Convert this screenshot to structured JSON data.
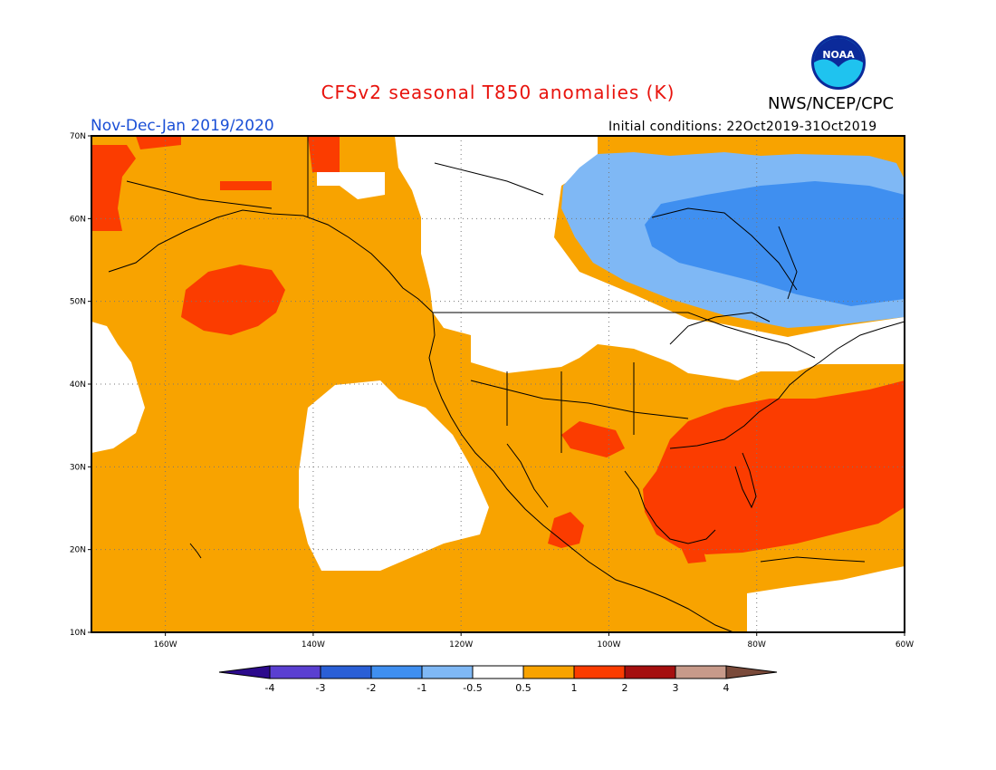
{
  "header": {
    "title": "CFSv2 seasonal T850 anomalies (K)",
    "org": "NWS/NCEP/CPC",
    "period": "Nov-Dec-Jan 2019/2020",
    "initial_conditions": "Initial conditions: 22Oct2019-31Oct2019",
    "logo_text": "NOAA"
  },
  "map": {
    "lat_ticks": [
      "70N",
      "60N",
      "50N",
      "40N",
      "30N",
      "20N",
      "10N"
    ],
    "lon_ticks": [
      "160W",
      "140W",
      "120W",
      "100W",
      "80W",
      "60W"
    ],
    "lon_range": [
      -170,
      -60
    ],
    "lat_range": [
      10,
      70
    ]
  },
  "colorbar": {
    "labels": [
      "-4",
      "-3",
      "-2",
      "-1",
      "-0.5",
      "0.5",
      "1",
      "2",
      "3",
      "4"
    ],
    "colors": [
      "#2c0a8c",
      "#5a3fd1",
      "#2a5fd6",
      "#3f8ff0",
      "#7fb8f5",
      "#ffffff",
      "#f8a300",
      "#fb3c00",
      "#a50f0f",
      "#c79a8a",
      "#7a4a3a"
    ]
  },
  "colors": {
    "anomaly_0_5_to_1": "#f8a300",
    "anomaly_1_to_2": "#fb3c00",
    "anomaly_neg_0_5_to_neg_1": "#7fb8f5",
    "anomaly_neg_1_to_neg_2": "#3f8ff0",
    "neutral": "#ffffff"
  }
}
